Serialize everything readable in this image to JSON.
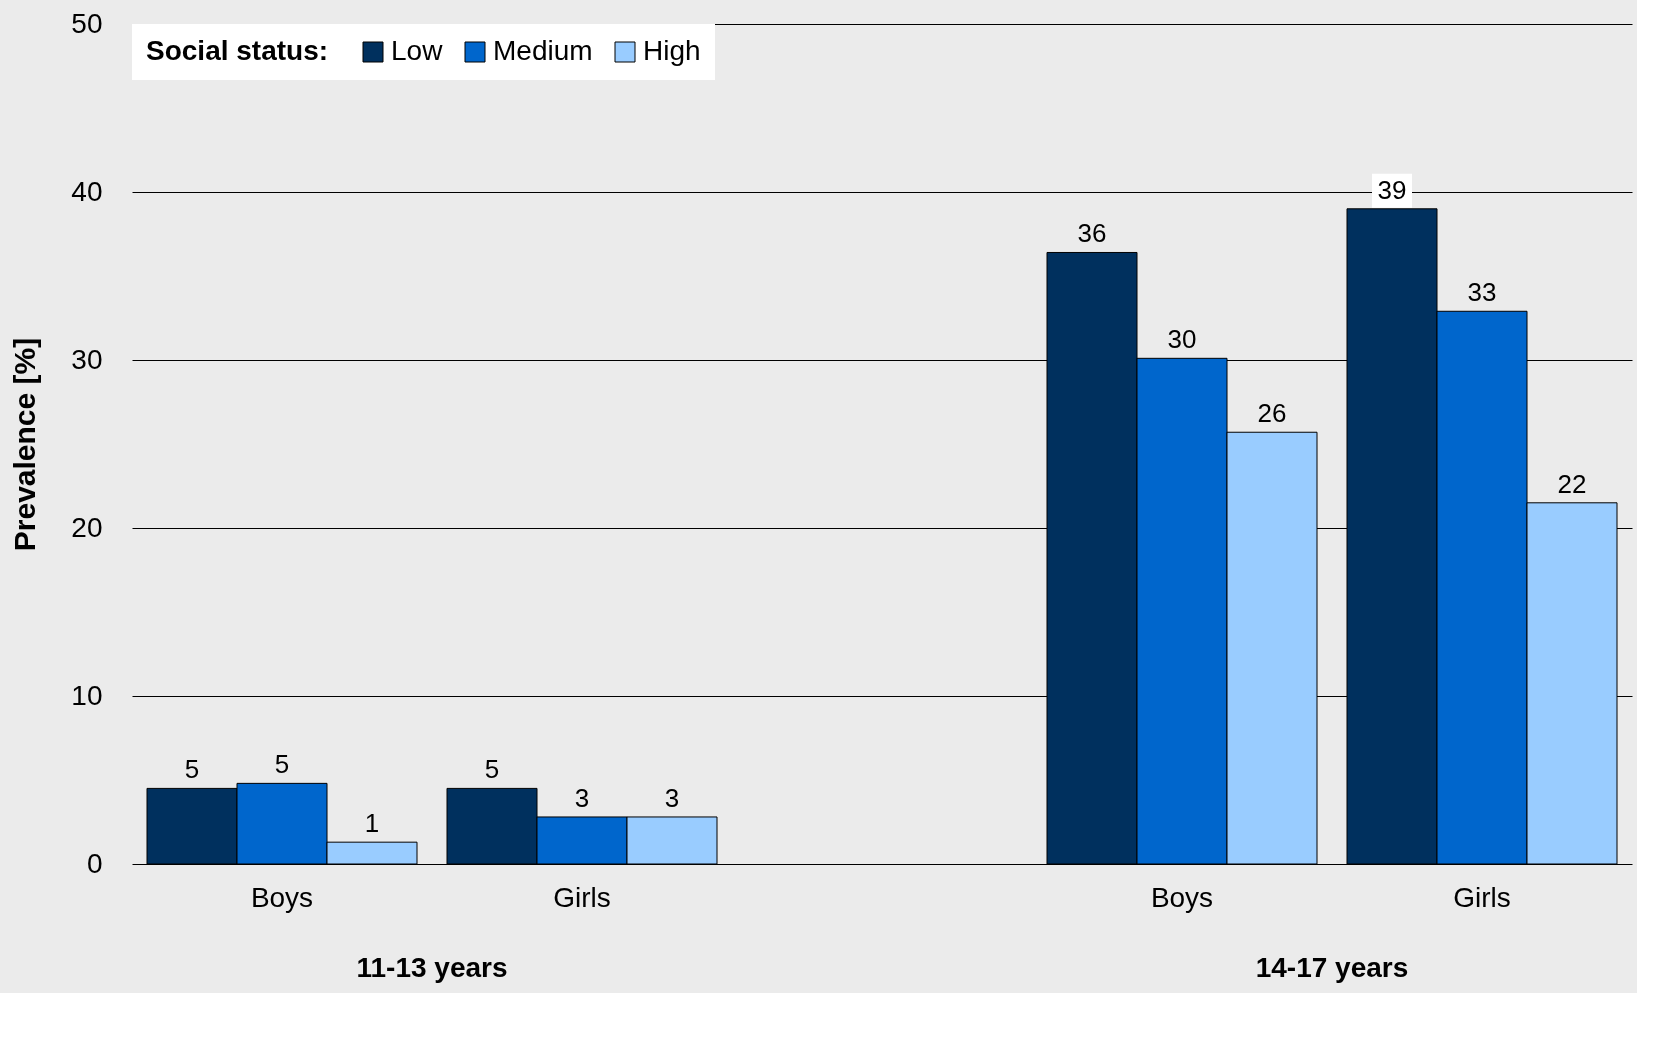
{
  "chart_data": {
    "type": "bar",
    "ylabel": "Prevalence [%]",
    "legend_title": "Social status:",
    "categories": [
      "Boys",
      "Girls",
      null,
      "Boys",
      "Girls"
    ],
    "series": [
      {
        "name": "Low",
        "color": "#00305e",
        "values": [
          4.5,
          4.5,
          null,
          36.4,
          39.0
        ],
        "value_labels": [
          "5",
          "5",
          null,
          "36",
          "39"
        ]
      },
      {
        "name": "Medium",
        "color": "#0066cc",
        "values": [
          4.8,
          2.8,
          null,
          30.1,
          32.9
        ],
        "value_labels": [
          "5",
          "3",
          null,
          "30",
          "33"
        ]
      },
      {
        "name": "High",
        "color": "#99ccff",
        "values": [
          1.3,
          2.8,
          null,
          25.7,
          21.5
        ],
        "value_labels": [
          "1",
          "3",
          null,
          "26",
          "22"
        ]
      }
    ],
    "ylim": [
      0,
      50
    ],
    "yticks": [
      0,
      10,
      20,
      30,
      40,
      50
    ],
    "grid": "y",
    "legend": "top left",
    "annotations": [
      "11-13 years",
      "14-17 years"
    ]
  }
}
